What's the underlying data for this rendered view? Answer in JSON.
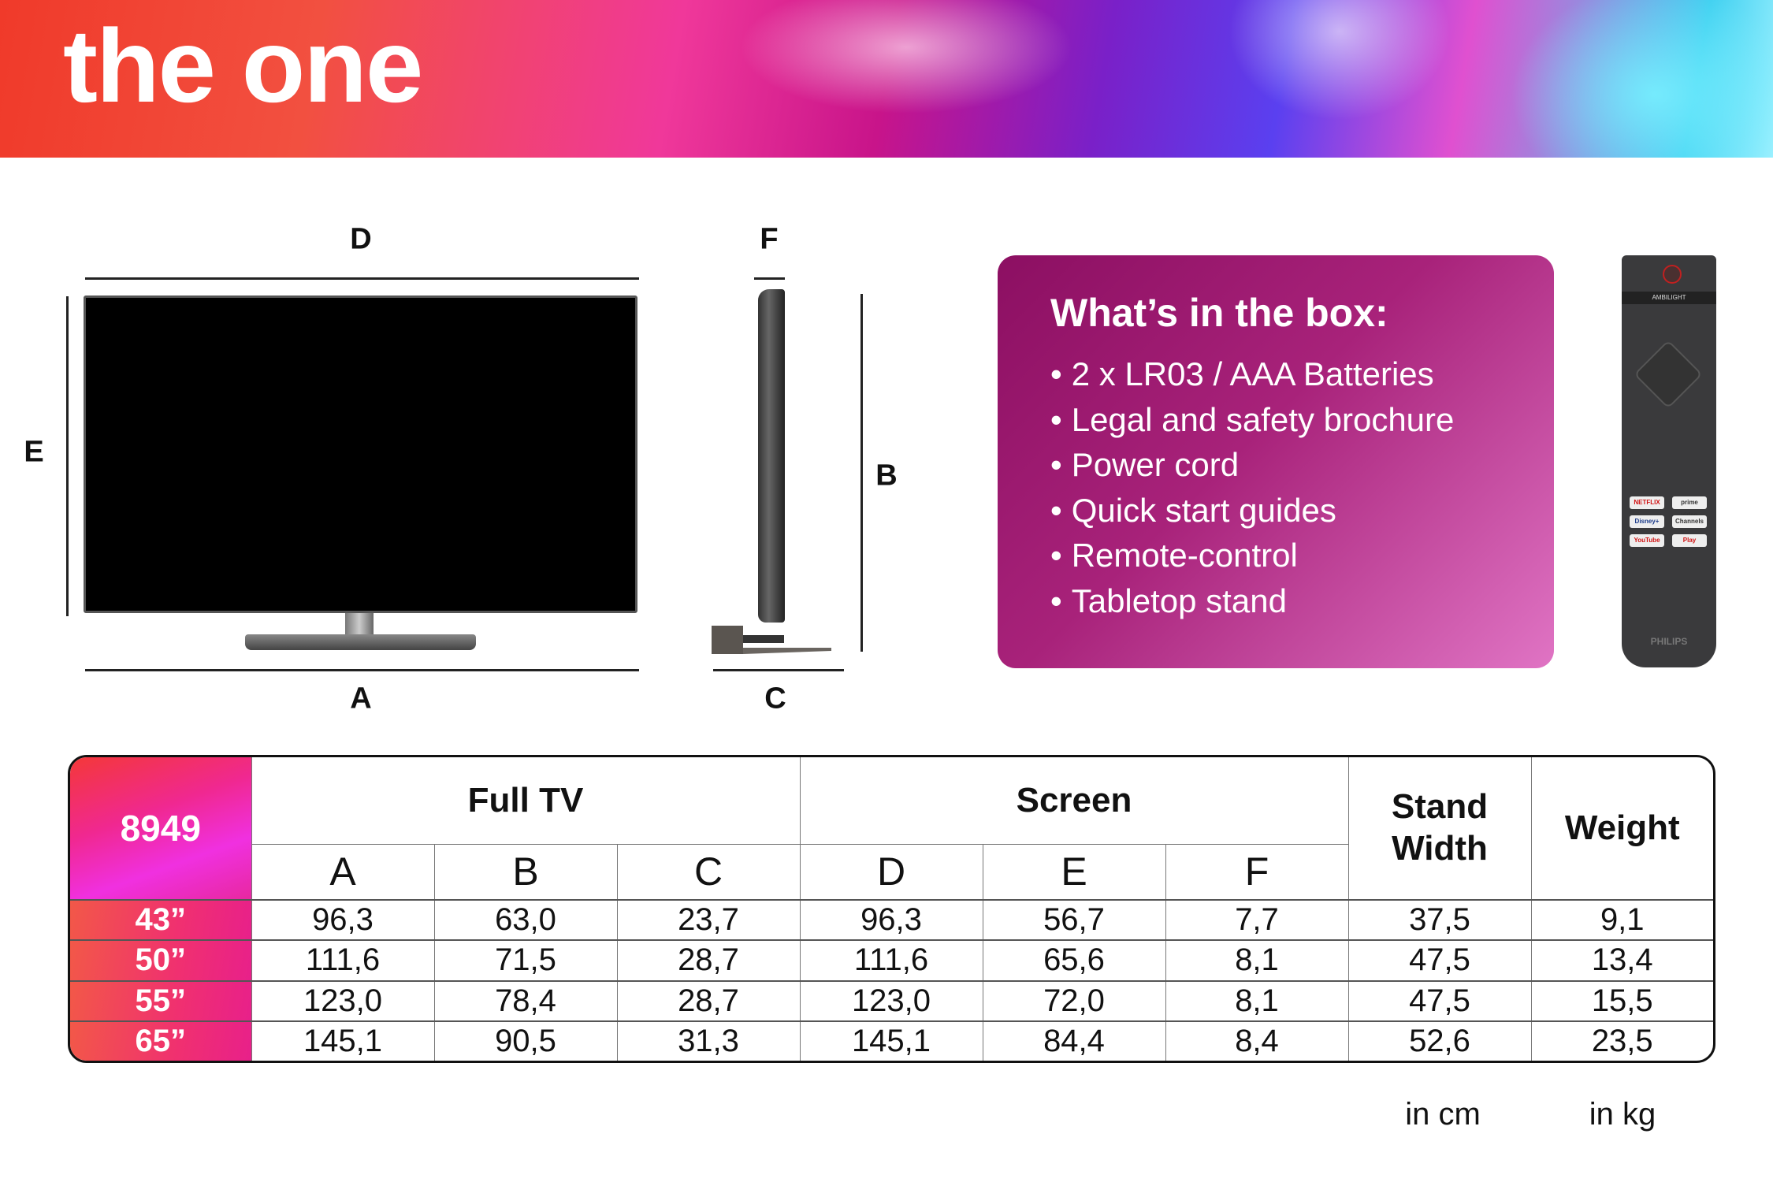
{
  "banner": {
    "brand": "the one"
  },
  "diagram": {
    "labels": {
      "A": "A",
      "B": "B",
      "C": "C",
      "D": "D",
      "E": "E",
      "F": "F"
    }
  },
  "box": {
    "title": "What’s in the box:",
    "items": [
      "2 x LR03 / AAA Batteries",
      "Legal and safety brochure",
      "Power cord",
      "Quick start guides",
      "Remote-control",
      "Tabletop stand"
    ]
  },
  "remote": {
    "ambilight": "AMBILIGHT",
    "apps": [
      "NETFLIX",
      "prime video",
      "Disney+",
      "Channels",
      "YouTube",
      "Play"
    ],
    "brand": "PHILIPS"
  },
  "table": {
    "model": "8949",
    "groups": {
      "full_tv": "Full TV",
      "screen": "Screen",
      "stand": "Stand Width",
      "weight": "Weight"
    },
    "columns": [
      "A",
      "B",
      "C",
      "D",
      "E",
      "F"
    ],
    "rows": [
      {
        "size": "43”",
        "values": [
          "96,3",
          "63,0",
          "23,7",
          "96,3",
          "56,7",
          "7,7",
          "37,5",
          "9,1"
        ]
      },
      {
        "size": "50”",
        "values": [
          "111,6",
          "71,5",
          "28,7",
          "111,6",
          "65,6",
          "8,1",
          "47,5",
          "13,4"
        ]
      },
      {
        "size": "55”",
        "values": [
          "123,0",
          "78,4",
          "28,7",
          "123,0",
          "72,0",
          "8,1",
          "47,5",
          "15,5"
        ]
      },
      {
        "size": "65”",
        "values": [
          "145,1",
          "90,5",
          "31,3",
          "145,1",
          "84,4",
          "8,4",
          "52,6",
          "23,5"
        ]
      }
    ],
    "units": {
      "cm": "in cm",
      "kg": "in kg"
    }
  }
}
